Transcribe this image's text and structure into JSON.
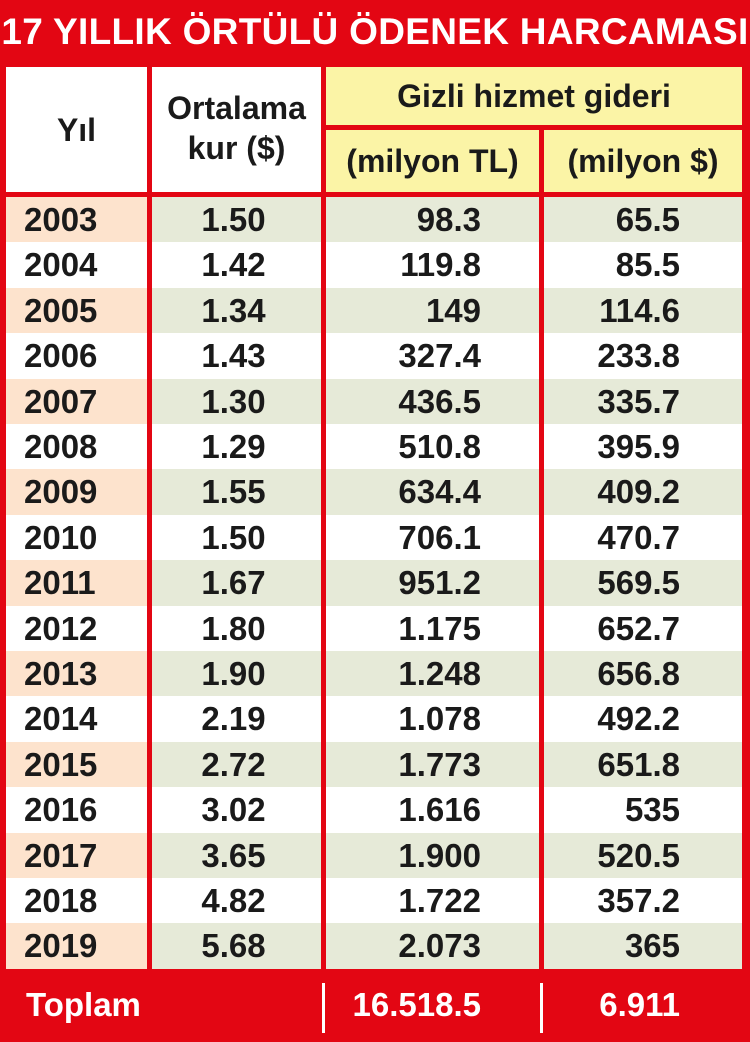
{
  "title": "17 YILLIK ÖRTÜLÜ ÖDENEK HARCAMASI",
  "colors": {
    "frame": "#e30613",
    "header_yellow": "#fbf4a6",
    "row_peach": "#fde3cd",
    "row_green": "#e6ead8",
    "row_white": "#ffffff"
  },
  "headers": {
    "year": "Yıl",
    "rate_line1": "Ortalama",
    "rate_line2": "kur ($)",
    "group": "Gizli hizmet gideri",
    "tl": "(milyon TL)",
    "usd": "(milyon $)"
  },
  "chart_data": {
    "type": "table",
    "title": "17 YILLIK ÖRTÜLÜ ÖDENEK HARCAMASI",
    "columns": [
      "Yıl",
      "Ortalama kur ($)",
      "Gizli hizmet gideri (milyon TL)",
      "Gizli hizmet gideri (milyon $)"
    ],
    "rows": [
      [
        "2003",
        "1.50",
        "98.3",
        "65.5"
      ],
      [
        "2004",
        "1.42",
        "119.8",
        "85.5"
      ],
      [
        "2005",
        "1.34",
        "149",
        "114.6"
      ],
      [
        "2006",
        "1.43",
        "327.4",
        "233.8"
      ],
      [
        "2007",
        "1.30",
        "436.5",
        "335.7"
      ],
      [
        "2008",
        "1.29",
        "510.8",
        "395.9"
      ],
      [
        "2009",
        "1.55",
        "634.4",
        "409.2"
      ],
      [
        "2010",
        "1.50",
        "706.1",
        "470.7"
      ],
      [
        "2011",
        "1.67",
        "951.2",
        "569.5"
      ],
      [
        "2012",
        "1.80",
        "1.175",
        "652.7"
      ],
      [
        "2013",
        "1.90",
        "1.248",
        "656.8"
      ],
      [
        "2014",
        "2.19",
        "1.078",
        "492.2"
      ],
      [
        "2015",
        "2.72",
        "1.773",
        "651.8"
      ],
      [
        "2016",
        "3.02",
        "1.616",
        "535"
      ],
      [
        "2017",
        "3.65",
        "1.900",
        "520.5"
      ],
      [
        "2018",
        "4.82",
        "1.722",
        "357.2"
      ],
      [
        "2019",
        "5.68",
        "2.073",
        "365"
      ]
    ],
    "total": {
      "label": "Toplam",
      "tl": "16.518.5",
      "usd": "6.911"
    }
  }
}
